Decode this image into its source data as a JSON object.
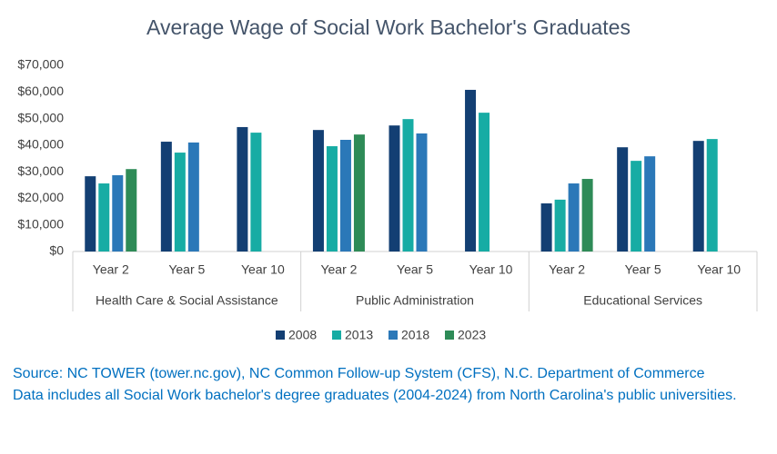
{
  "chart_data": {
    "type": "bar",
    "title": "Average Wage of Social Work Bachelor's Graduates",
    "category_groups": [
      {
        "label": "Health Care & Social Assistance",
        "categories": [
          "Year 2",
          "Year 5",
          "Year 10"
        ]
      },
      {
        "label": "Public Administration",
        "categories": [
          "Year 2",
          "Year 5",
          "Year 10"
        ]
      },
      {
        "label": "Educational Services",
        "categories": [
          "Year 2",
          "Year 5",
          "Year 10"
        ]
      }
    ],
    "series": [
      {
        "name": "2008",
        "color": "#133f73",
        "values": [
          28300,
          41300,
          46800,
          45700,
          47400,
          60800,
          18100,
          39200,
          41600
        ]
      },
      {
        "name": "2013",
        "color": "#17aca4",
        "values": [
          25600,
          37200,
          44700,
          39600,
          49800,
          52200,
          19500,
          34100,
          42300
        ]
      },
      {
        "name": "2018",
        "color": "#2b78b8",
        "values": [
          28700,
          41000,
          null,
          42000,
          44400,
          null,
          25600,
          35800,
          null
        ]
      },
      {
        "name": "2023",
        "color": "#2e8b57",
        "values": [
          31000,
          null,
          null,
          44000,
          null,
          null,
          27300,
          null,
          null
        ]
      }
    ],
    "ylim": [
      0,
      70000
    ],
    "yticks": [
      {
        "value": 0,
        "label": "$0"
      },
      {
        "value": 10000,
        "label": "$10,000"
      },
      {
        "value": 20000,
        "label": "$20,000"
      },
      {
        "value": 30000,
        "label": "$30,000"
      },
      {
        "value": 40000,
        "label": "$40,000"
      },
      {
        "value": 50000,
        "label": "$50,000"
      },
      {
        "value": 60000,
        "label": "$60,000"
      },
      {
        "value": 70000,
        "label": "$70,000"
      }
    ],
    "grid": false,
    "legend": "bottom",
    "notes": [
      "Source: NC TOWER (tower.nc.gov), NC Common Follow-up System (CFS), N.C. Department of Commerce",
      "Data includes all Social Work bachelor's degree graduates (2004-2024) from North Carolina's public universities."
    ]
  }
}
